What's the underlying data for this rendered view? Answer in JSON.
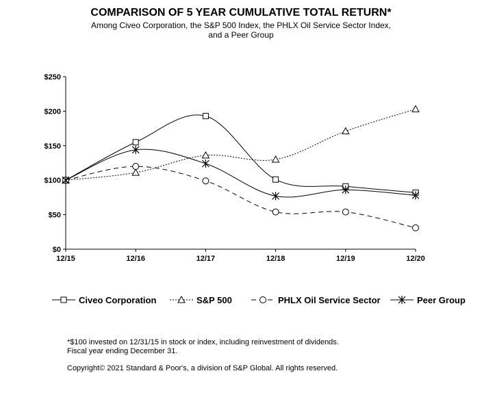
{
  "chart_data": {
    "type": "line",
    "title": "COMPARISON OF 5 YEAR CUMULATIVE TOTAL RETURN*",
    "subtitle": [
      "Among Civeo Corporation, the S&P 500 Index, the PHLX Oil Service Sector Index,",
      "and a Peer Group"
    ],
    "categories": [
      "12/15",
      "12/16",
      "12/17",
      "12/18",
      "12/19",
      "12/20"
    ],
    "ylim": [
      0,
      250
    ],
    "yticks": [
      0,
      50,
      100,
      150,
      200,
      250
    ],
    "ytick_labels": [
      "$0",
      "$50",
      "$100",
      "$150",
      "$200",
      "$250"
    ],
    "xlabel": "",
    "ylabel": "",
    "legend_position": "bottom",
    "series": [
      {
        "name": "Civeo Corporation",
        "marker": "square",
        "line": "solid",
        "values": [
          100,
          155,
          193,
          101,
          91,
          82
        ]
      },
      {
        "name": "S&P 500",
        "marker": "triangle",
        "line": "dotted",
        "values": [
          100,
          111,
          136,
          130,
          171,
          203
        ]
      },
      {
        "name": "PHLX Oil Service Sector",
        "marker": "circle",
        "line": "dashed",
        "values": [
          100,
          120,
          99,
          54,
          54,
          31
        ]
      },
      {
        "name": "Peer Group",
        "marker": "asterisk",
        "line": "solid",
        "values": [
          100,
          144,
          124,
          77,
          86,
          78
        ]
      }
    ]
  },
  "footnotes": [
    "*$100 invested on 12/31/15 in stock or index, including reinvestment of dividends.",
    "Fiscal year ending December 31."
  ],
  "copyright": "Copyright© 2021 Standard & Poor's, a division of S&P Global. All rights reserved."
}
